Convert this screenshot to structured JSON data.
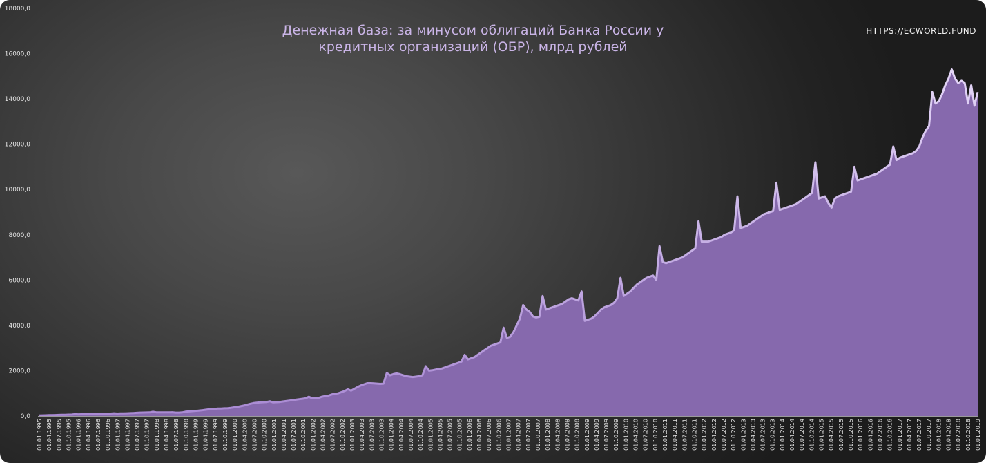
{
  "header": {
    "title_line1": "Денежная база: за минусом облигаций Банка России у",
    "title_line2": "кредитных организаций (ОБР), млрд рублей",
    "url": "HTTPS://ECWORLD.FUND"
  },
  "colors": {
    "fill": "#8669ad",
    "edge": "#c9b6ea",
    "axis_text": "#e6e6e6"
  },
  "chart_data": {
    "type": "area",
    "title": "Денежная база: за минусом облигаций Банка России у кредитных организаций (ОБР), млрд рублей",
    "xlabel": "",
    "ylabel": "",
    "ylim": [
      0,
      18000
    ],
    "yticks": [
      "0,0",
      "2000,0",
      "4000,0",
      "6000,0",
      "8000,0",
      "10000,0",
      "12000,0",
      "14000,0",
      "16000,0",
      "18000,0"
    ],
    "xticks": [
      "01.01.1995",
      "01.04.1995",
      "01.07.1995",
      "01.10.1995",
      "01.01.1996",
      "01.04.1996",
      "01.07.1996",
      "01.10.1996",
      "01.01.1997",
      "01.04.1997",
      "01.07.1997",
      "01.10.1997",
      "01.01.1998",
      "01.04.1998",
      "01.07.1998",
      "01.10.1998",
      "01.01.1999",
      "01.04.1999",
      "01.07.1999",
      "01.10.1999",
      "01.01.2000",
      "01.04.2000",
      "01.07.2000",
      "01.10.2000",
      "01.01.2001",
      "01.04.2001",
      "01.07.2001",
      "01.10.2001",
      "01.01.2002",
      "01.04.2002",
      "01.07.2002",
      "01.10.2002",
      "01.01.2003",
      "01.04.2003",
      "01.07.2003",
      "01.10.2003",
      "01.01.2004",
      "01.04.2004",
      "01.07.2004",
      "01.10.2004",
      "01.01.2005",
      "01.04.2005",
      "01.07.2005",
      "01.10.2005",
      "01.01.2006",
      "01.04.2006",
      "01.07.2006",
      "01.10.2006",
      "01.01.2007",
      "01.04.2007",
      "01.07.2007",
      "01.10.2007",
      "01.01.2008",
      "01.04.2008",
      "01.07.2008",
      "01.10.2008",
      "01.01.2009",
      "01.04.2009",
      "01.07.2009",
      "01.10.2009",
      "01.01.2010",
      "01.04.2010",
      "01.07.2010",
      "01.10.2010",
      "01.01.2011",
      "01.04.2011",
      "01.07.2011",
      "01.10.2011",
      "01.01.2012",
      "01.04.2012",
      "01.07.2012",
      "01.10.2012",
      "01.01.2013",
      "01.04.2013",
      "01.07.2013",
      "01.10.2013",
      "01.01.2014",
      "01.04.2014",
      "01.07.2014",
      "01.10.2014",
      "01.01.2015",
      "01.04.2015",
      "01.07.2015",
      "01.10.2015",
      "01.01.2016",
      "01.04.2016",
      "01.07.2016",
      "01.10.2016",
      "01.01.2017",
      "01.04.2017",
      "01.07.2017",
      "01.10.2017",
      "01.01.2018",
      "01.04.2018",
      "01.07.2018",
      "01.10.2018",
      "01.01.2019"
    ],
    "series": [
      {
        "frequency": "monthly",
        "start": "01.01.1995",
        "values": [
          25,
          28,
          32,
          36,
          40,
          44,
          48,
          52,
          56,
          60,
          64,
          80,
          72,
          76,
          80,
          84,
          88,
          92,
          96,
          100,
          102,
          104,
          106,
          120,
          108,
          112,
          116,
          120,
          126,
          132,
          140,
          148,
          152,
          156,
          160,
          190,
          162,
          160,
          158,
          158,
          160,
          164,
          150,
          150,
          160,
          190,
          200,
          215,
          225,
          235,
          250,
          270,
          290,
          305,
          315,
          325,
          330,
          340,
          345,
          360,
          380,
          400,
          430,
          460,
          500,
          540,
          570,
          590,
          600,
          610,
          620,
          650,
          600,
          610,
          620,
          640,
          660,
          680,
          700,
          720,
          740,
          760,
          780,
          850,
          780,
          790,
          800,
          850,
          880,
          900,
          950,
          980,
          1000,
          1050,
          1100,
          1180,
          1120,
          1200,
          1280,
          1350,
          1400,
          1450,
          1450,
          1440,
          1430,
          1420,
          1430,
          1900,
          1800,
          1850,
          1880,
          1850,
          1800,
          1760,
          1740,
          1720,
          1740,
          1760,
          1800,
          2200,
          2000,
          2020,
          2050,
          2080,
          2100,
          2150,
          2200,
          2250,
          2300,
          2350,
          2400,
          2700,
          2500,
          2550,
          2600,
          2700,
          2800,
          2900,
          3000,
          3100,
          3150,
          3200,
          3250,
          3900,
          3450,
          3500,
          3700,
          4000,
          4300,
          4900,
          4700,
          4600,
          4400,
          4350,
          4380,
          5300,
          4700,
          4750,
          4800,
          4850,
          4900,
          4950,
          5050,
          5150,
          5200,
          5150,
          5100,
          5500,
          4200,
          4250,
          4300,
          4400,
          4550,
          4700,
          4800,
          4850,
          4900,
          5000,
          5200,
          6100,
          5300,
          5400,
          5500,
          5650,
          5800,
          5900,
          6000,
          6100,
          6150,
          6200,
          6000,
          7500,
          6800,
          6750,
          6800,
          6850,
          6900,
          6950,
          7000,
          7100,
          7200,
          7300,
          7400,
          8600,
          7700,
          7700,
          7700,
          7750,
          7800,
          7850,
          7900,
          8000,
          8050,
          8100,
          8200,
          9700,
          8300,
          8350,
          8400,
          8500,
          8600,
          8700,
          8800,
          8900,
          8950,
          9000,
          9050,
          10300,
          9100,
          9150,
          9200,
          9250,
          9300,
          9350,
          9450,
          9550,
          9650,
          9750,
          9850,
          11200,
          9600,
          9650,
          9700,
          9400,
          9200,
          9600,
          9700,
          9750,
          9800,
          9850,
          9900,
          11000,
          10400,
          10450,
          10500,
          10550,
          10600,
          10650,
          10700,
          10800,
          10900,
          11000,
          11100,
          11900,
          11300,
          11400,
          11450,
          11500,
          11550,
          11600,
          11700,
          11900,
          12300,
          12600,
          12800,
          14300,
          13800,
          13900,
          14200,
          14600,
          14900,
          15300,
          14900,
          14700,
          14800,
          14700,
          13800,
          14600,
          13700,
          14300
        ]
      }
    ]
  }
}
